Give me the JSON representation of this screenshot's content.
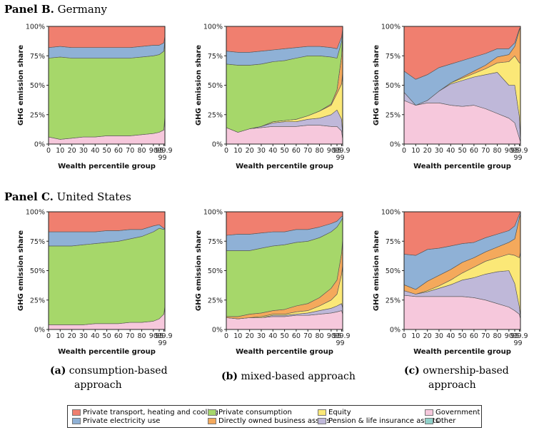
{
  "colors": {
    "transport": "#f07f6f",
    "electricity": "#8fb1d6",
    "consumption": "#a6d76a",
    "equity": "#fbe877",
    "business": "#f4a95c",
    "pension": "#bfb8d9",
    "government": "#f6c8dc",
    "other": "#8fd1c9"
  },
  "panels": [
    {
      "bold": "Panel B.",
      "name": "Germany"
    },
    {
      "bold": "Panel C.",
      "name": "United States"
    }
  ],
  "captions": [
    {
      "letter": "(a)",
      "line1": "consumption-based",
      "line2": "approach"
    },
    {
      "letter": "(b)",
      "line1": "mixed-based approach",
      "line2": ""
    },
    {
      "letter": "(c)",
      "line1": "ownership-based",
      "line2": "approach"
    }
  ],
  "legend": [
    {
      "key": "transport",
      "label": "Private transport, heating and cooling"
    },
    {
      "key": "electricity",
      "label": "Private electricity use"
    },
    {
      "key": "consumption",
      "label": "Private consumption"
    },
    {
      "key": "business",
      "label": "Directly owned business assets"
    },
    {
      "key": "equity",
      "label": "Equity"
    },
    {
      "key": "pension",
      "label": "Pension & life insurance assets"
    },
    {
      "key": "government",
      "label": "Government"
    },
    {
      "key": "other",
      "label": "Other"
    }
  ],
  "chart_data": [
    {
      "type": "area",
      "panel": "Panel B. Germany",
      "approach": "consumption-based",
      "xlabel": "Wealth percentile group",
      "ylabel": "GHG emission share",
      "x": [
        0,
        10,
        20,
        30,
        40,
        50,
        60,
        70,
        80,
        90,
        95,
        99,
        99.9
      ],
      "ylim": [
        0,
        100
      ],
      "yticks": [
        "0%",
        "25%",
        "50%",
        "75%",
        "100%"
      ],
      "xticks": [
        "0",
        "10",
        "20",
        "30",
        "40",
        "50",
        "60",
        "70",
        "80",
        "90",
        "95",
        "99.9"
      ],
      "xtick_extra": "99",
      "series": [
        {
          "key": "government",
          "values": [
            6,
            4,
            5,
            6,
            6,
            7,
            7,
            7,
            8,
            9,
            10,
            12,
            24
          ]
        },
        {
          "key": "consumption",
          "values": [
            67,
            70,
            68,
            67,
            67,
            66,
            66,
            66,
            66,
            66,
            66,
            67,
            65
          ]
        },
        {
          "key": "electricity",
          "values": [
            9,
            9,
            9,
            9,
            9,
            9,
            9,
            9,
            9,
            9,
            8,
            7,
            3
          ]
        },
        {
          "key": "transport",
          "values": [
            18,
            17,
            18,
            18,
            18,
            18,
            18,
            18,
            17,
            16,
            16,
            14,
            8
          ]
        }
      ]
    },
    {
      "type": "area",
      "panel": "Panel B. Germany",
      "approach": "mixed-based",
      "xlabel": "Wealth percentile group",
      "ylabel": "GHG emission share",
      "x": [
        0,
        10,
        20,
        30,
        40,
        50,
        60,
        70,
        80,
        90,
        95,
        99,
        99.9
      ],
      "ylim": [
        0,
        100
      ],
      "yticks": [
        "0%",
        "25%",
        "50%",
        "75%",
        "100%"
      ],
      "xticks": [
        "0",
        "10",
        "20",
        "30",
        "40",
        "50",
        "60",
        "70",
        "80",
        "90",
        "95",
        "99.9"
      ],
      "xtick_extra": "99",
      "series": [
        {
          "key": "government",
          "values": [
            14,
            10,
            13,
            14,
            15,
            15,
            15,
            16,
            16,
            15,
            15,
            11,
            4
          ]
        },
        {
          "key": "pension",
          "values": [
            0,
            0,
            0,
            1,
            3,
            4,
            4,
            5,
            6,
            10,
            14,
            10,
            3
          ]
        },
        {
          "key": "equity",
          "values": [
            0,
            0,
            0,
            0,
            1,
            1,
            2,
            3,
            6,
            8,
            14,
            30,
            54
          ]
        },
        {
          "key": "business",
          "values": [
            0,
            0,
            0,
            0,
            0,
            0,
            0,
            0,
            0,
            1,
            3,
            24,
            34
          ]
        },
        {
          "key": "other",
          "values": [
            0,
            0,
            0,
            0,
            0,
            0,
            0,
            0,
            0,
            0,
            0,
            0,
            0
          ]
        },
        {
          "key": "consumption",
          "values": [
            54,
            57,
            54,
            53,
            51,
            51,
            52,
            51,
            47,
            40,
            27,
            12,
            2
          ]
        },
        {
          "key": "electricity",
          "values": [
            11,
            11,
            11,
            11,
            10,
            10,
            9,
            8,
            8,
            8,
            8,
            4,
            1
          ]
        },
        {
          "key": "transport",
          "values": [
            21,
            22,
            22,
            21,
            20,
            19,
            18,
            17,
            17,
            18,
            19,
            9,
            2
          ]
        }
      ]
    },
    {
      "type": "area",
      "panel": "Panel B. Germany",
      "approach": "ownership-based",
      "xlabel": "Wealth percentile group",
      "ylabel": "GHG emission share",
      "x": [
        0,
        10,
        20,
        30,
        40,
        50,
        60,
        70,
        80,
        90,
        95,
        99,
        99.9
      ],
      "ylim": [
        0,
        100
      ],
      "yticks": [
        "0%",
        "25%",
        "50%",
        "75%",
        "100%"
      ],
      "xticks": [
        "0",
        "10",
        "20",
        "30",
        "40",
        "50",
        "60",
        "70",
        "80",
        "90",
        "95",
        "99.9"
      ],
      "xtick_extra": "99",
      "series": [
        {
          "key": "government",
          "values": [
            37,
            33,
            35,
            35,
            33,
            32,
            33,
            30,
            26,
            22,
            18,
            5,
            2
          ]
        },
        {
          "key": "pension",
          "values": [
            7,
            0,
            2,
            10,
            18,
            22,
            24,
            29,
            35,
            28,
            32,
            18,
            1
          ]
        },
        {
          "key": "equity",
          "values": [
            0,
            0,
            0,
            0,
            1,
            2,
            3,
            5,
            8,
            20,
            25,
            46,
            66
          ]
        },
        {
          "key": "business",
          "values": [
            0,
            0,
            0,
            0,
            0,
            1,
            2,
            3,
            5,
            6,
            8,
            28,
            30
          ]
        },
        {
          "key": "electricity",
          "values": [
            18,
            22,
            22,
            20,
            16,
            14,
            12,
            10,
            7,
            5,
            3,
            1,
            0
          ]
        },
        {
          "key": "transport",
          "values": [
            38,
            45,
            41,
            35,
            32,
            29,
            26,
            23,
            19,
            19,
            14,
            2,
            1
          ]
        }
      ]
    },
    {
      "type": "area",
      "panel": "Panel C. United States",
      "approach": "consumption-based",
      "xlabel": "Wealth percentile group",
      "ylabel": "GHG emission share",
      "x": [
        0,
        10,
        20,
        30,
        40,
        50,
        60,
        70,
        80,
        90,
        95,
        99,
        99.9
      ],
      "ylim": [
        0,
        100
      ],
      "yticks": [
        "0%",
        "25%",
        "50%",
        "75%",
        "100%"
      ],
      "xticks": [
        "0",
        "10",
        "20",
        "30",
        "40",
        "50",
        "60",
        "70",
        "80",
        "90",
        "95",
        "99.9"
      ],
      "xtick_extra": "99",
      "series": [
        {
          "key": "government",
          "values": [
            4,
            4,
            4,
            4,
            5,
            5,
            5,
            6,
            6,
            7,
            9,
            13,
            20
          ]
        },
        {
          "key": "consumption",
          "values": [
            67,
            67,
            67,
            68,
            68,
            69,
            70,
            71,
            73,
            76,
            77,
            72,
            66
          ]
        },
        {
          "key": "electricity",
          "values": [
            12,
            12,
            12,
            11,
            10,
            10,
            9,
            8,
            6,
            5,
            3,
            1,
            0
          ]
        },
        {
          "key": "transport",
          "values": [
            17,
            17,
            17,
            17,
            17,
            16,
            16,
            15,
            15,
            12,
            11,
            14,
            14
          ]
        }
      ]
    },
    {
      "type": "area",
      "panel": "Panel C. United States",
      "approach": "mixed-based",
      "xlabel": "Wealth percentile group",
      "ylabel": "GHG emission share",
      "x": [
        0,
        10,
        20,
        30,
        40,
        50,
        60,
        70,
        80,
        90,
        95,
        99,
        99.9
      ],
      "ylim": [
        0,
        100
      ],
      "yticks": [
        "0%",
        "25%",
        "50%",
        "75%",
        "100%"
      ],
      "xticks": [
        "0",
        "10",
        "20",
        "30",
        "40",
        "50",
        "60",
        "70",
        "80",
        "90",
        "95",
        "99.9"
      ],
      "xtick_extra": "99",
      "series": [
        {
          "key": "government",
          "values": [
            10,
            9,
            10,
            10,
            11,
            11,
            12,
            12,
            13,
            14,
            15,
            16,
            13
          ]
        },
        {
          "key": "pension",
          "values": [
            0,
            0,
            0,
            0,
            1,
            1,
            1,
            2,
            3,
            4,
            5,
            6,
            5
          ]
        },
        {
          "key": "equity",
          "values": [
            0,
            0,
            0,
            1,
            1,
            1,
            2,
            2,
            4,
            7,
            10,
            25,
            37
          ]
        },
        {
          "key": "business",
          "values": [
            1,
            2,
            3,
            3,
            3,
            4,
            5,
            6,
            7,
            10,
            12,
            18,
            22
          ]
        },
        {
          "key": "consumption",
          "values": [
            56,
            56,
            54,
            55,
            55,
            55,
            54,
            53,
            51,
            48,
            45,
            28,
            18
          ]
        },
        {
          "key": "electricity",
          "values": [
            13,
            14,
            14,
            13,
            12,
            11,
            11,
            10,
            9,
            7,
            5,
            3,
            1
          ]
        },
        {
          "key": "transport",
          "values": [
            20,
            19,
            19,
            18,
            17,
            17,
            15,
            15,
            13,
            10,
            8,
            4,
            4
          ]
        }
      ]
    },
    {
      "type": "area",
      "panel": "Panel C. United States",
      "approach": "ownership-based",
      "xlabel": "Wealth percentile group",
      "ylabel": "GHG emission share",
      "x": [
        0,
        10,
        20,
        30,
        40,
        50,
        60,
        70,
        80,
        90,
        95,
        99,
        99.9
      ],
      "ylim": [
        0,
        100
      ],
      "yticks": [
        "0%",
        "25%",
        "50%",
        "75%",
        "100%"
      ],
      "xticks": [
        "0",
        "10",
        "20",
        "30",
        "40",
        "50",
        "60",
        "70",
        "80",
        "90",
        "95",
        "99.9"
      ],
      "xtick_extra": "99",
      "series": [
        {
          "key": "government",
          "values": [
            29,
            28,
            28,
            28,
            28,
            28,
            27,
            25,
            22,
            19,
            16,
            13,
            9
          ]
        },
        {
          "key": "pension",
          "values": [
            4,
            2,
            4,
            7,
            10,
            14,
            17,
            22,
            27,
            31,
            23,
            6,
            2
          ]
        },
        {
          "key": "equity",
          "values": [
            0,
            0,
            1,
            2,
            4,
            6,
            9,
            11,
            12,
            14,
            24,
            42,
            55
          ]
        },
        {
          "key": "business",
          "values": [
            5,
            4,
            8,
            9,
            9,
            9,
            8,
            8,
            9,
            10,
            14,
            34,
            31
          ]
        },
        {
          "key": "other",
          "values": [
            0,
            0,
            0,
            0,
            0,
            0,
            0,
            0,
            0,
            0,
            0,
            0,
            1
          ]
        },
        {
          "key": "electricity",
          "values": [
            26,
            29,
            27,
            23,
            20,
            16,
            13,
            12,
            11,
            10,
            11,
            3,
            1
          ]
        },
        {
          "key": "transport",
          "values": [
            36,
            37,
            32,
            31,
            29,
            27,
            26,
            22,
            19,
            16,
            12,
            2,
            1
          ]
        }
      ]
    }
  ]
}
